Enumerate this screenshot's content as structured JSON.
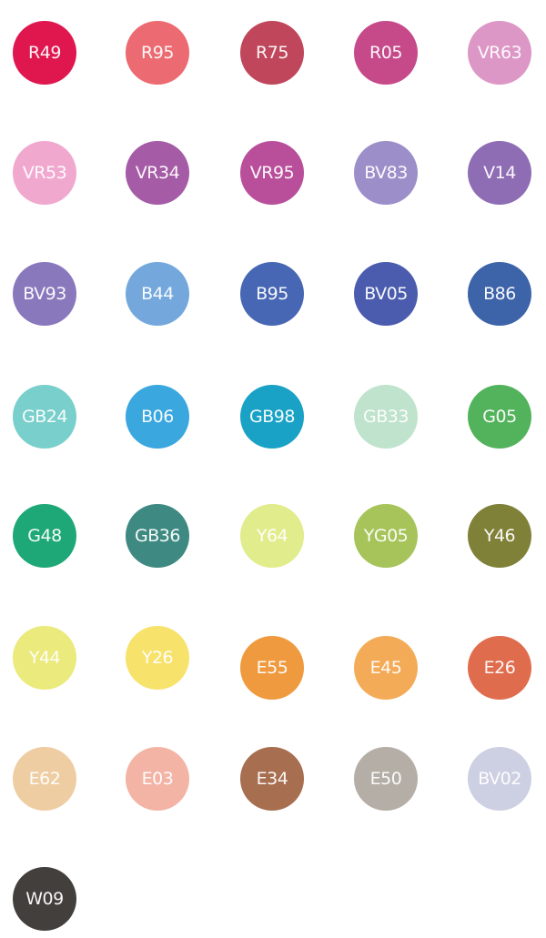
{
  "swatches": [
    {
      "label": "R49",
      "color": "#e0174f"
    },
    {
      "label": "R95",
      "color": "#ec6a72"
    },
    {
      "label": "R75",
      "color": "#c0465b"
    },
    {
      "label": "R05",
      "color": "#c64a8a"
    },
    {
      "label": "VR63",
      "color": "#dd97c6"
    },
    {
      "label": "VR53",
      "color": "#f0a8cf"
    },
    {
      "label": "VR34",
      "color": "#a55ba6"
    },
    {
      "label": "VR95",
      "color": "#b94f9a"
    },
    {
      "label": "BV83",
      "color": "#9c8ec8"
    },
    {
      "label": "V14",
      "color": "#8e6db5"
    },
    {
      "label": "BV93",
      "color": "#8a78bc"
    },
    {
      "label": "B44",
      "color": "#74a8dc"
    },
    {
      "label": "B95",
      "color": "#4767b4"
    },
    {
      "label": "BV05",
      "color": "#4b5caf"
    },
    {
      "label": "B86",
      "color": "#3d63a8"
    },
    {
      "label": "GB24",
      "color": "#79cfcb"
    },
    {
      "label": "B06",
      "color": "#3aa7df"
    },
    {
      "label": "GB98",
      "color": "#1aa2c6"
    },
    {
      "label": "GB33",
      "color": "#bfe3cc"
    },
    {
      "label": "G05",
      "color": "#52b35c"
    },
    {
      "label": "G48",
      "color": "#1fa877"
    },
    {
      "label": "GB36",
      "color": "#3e8a82"
    },
    {
      "label": "Y64",
      "color": "#e1ec8c"
    },
    {
      "label": "YG05",
      "color": "#a6c45a"
    },
    {
      "label": "Y46",
      "color": "#7f8138"
    },
    {
      "label": "Y44",
      "color": "#ebea7c"
    },
    {
      "label": "Y26",
      "color": "#f7e26c"
    },
    {
      "label": "E55",
      "color": "#ef9a3e"
    },
    {
      "label": "E45",
      "color": "#f4ab58"
    },
    {
      "label": "E26",
      "color": "#e06c4e"
    },
    {
      "label": "E62",
      "color": "#efcda3"
    },
    {
      "label": "E03",
      "color": "#f3b4a6"
    },
    {
      "label": "E34",
      "color": "#a76e4f"
    },
    {
      "label": "E50",
      "color": "#b4aea6"
    },
    {
      "label": "BV02",
      "color": "#cdd0e2"
    },
    {
      "label": "W09",
      "color": "#423f3c"
    }
  ]
}
